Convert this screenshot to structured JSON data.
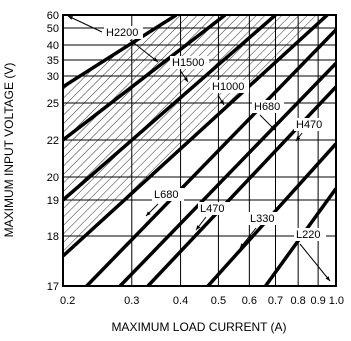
{
  "chart_data": {
    "type": "line",
    "xlabel": "MAXIMUM LOAD CURRENT (A)",
    "ylabel": "MAXIMUM INPUT VOLTAGE (V)",
    "x_scale": "log",
    "y_scale": "nonlinear",
    "grid": true,
    "xlim": [
      0.2,
      1.0
    ],
    "x_ticks": [
      {
        "value": 0.2,
        "label": "0.2"
      },
      {
        "value": 0.3,
        "label": "0.3"
      },
      {
        "value": 0.4,
        "label": "0.4"
      },
      {
        "value": 0.5,
        "label": "0.5"
      },
      {
        "value": 0.6,
        "label": "0.6"
      },
      {
        "value": 0.7,
        "label": "0.7"
      },
      {
        "value": 0.8,
        "label": "0.8"
      },
      {
        "value": 0.9,
        "label": "0.9"
      },
      {
        "value": 1.0,
        "label": "1.0"
      }
    ],
    "y_ticks": [
      {
        "value": 60,
        "label": "60"
      },
      {
        "value": 50,
        "label": "50"
      },
      {
        "value": 40,
        "label": "40"
      },
      {
        "value": 35,
        "label": "35"
      },
      {
        "value": 30,
        "label": "30"
      },
      {
        "value": 25,
        "label": "25"
      },
      {
        "value": 22,
        "label": "22"
      },
      {
        "value": 20,
        "label": "20"
      },
      {
        "value": 19,
        "label": "19"
      },
      {
        "value": 18,
        "label": "18"
      },
      {
        "value": 17,
        "label": "17"
      }
    ],
    "series": [
      {
        "name": "H2200",
        "points": [
          [
            0.2,
            28
          ],
          [
            0.39,
            60
          ]
        ]
      },
      {
        "name": "H1500",
        "points": [
          [
            0.2,
            22
          ],
          [
            0.52,
            60
          ]
        ]
      },
      {
        "name": "H1000",
        "points": [
          [
            0.2,
            19
          ],
          [
            0.7,
            60
          ]
        ]
      },
      {
        "name": "H680",
        "points": [
          [
            0.2,
            17.6
          ],
          [
            0.95,
            60
          ]
        ]
      },
      {
        "name": "H470",
        "points": [
          [
            0.28,
            17
          ],
          [
            1.0,
            34
          ]
        ]
      },
      {
        "name": "L680",
        "points": [
          [
            0.23,
            17
          ],
          [
            1.0,
            49
          ]
        ]
      },
      {
        "name": "L470",
        "points": [
          [
            0.33,
            17
          ],
          [
            1.0,
            28
          ]
        ]
      },
      {
        "name": "L330",
        "points": [
          [
            0.47,
            17
          ],
          [
            1.0,
            21.8
          ]
        ]
      },
      {
        "name": "L220",
        "points": [
          [
            0.66,
            17
          ],
          [
            1.0,
            19.5
          ]
        ]
      }
    ],
    "hatched_region": {
      "below_curve": "H680",
      "above_curve": "H2200"
    },
    "annotations": [
      "H2200",
      "H1500",
      "H1000",
      "H680",
      "H470",
      "L680",
      "L470",
      "L330",
      "L220"
    ]
  }
}
